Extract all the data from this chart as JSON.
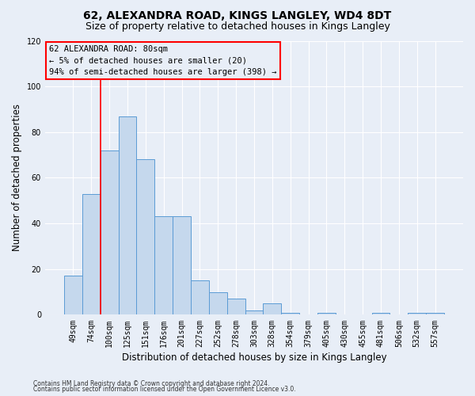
{
  "title": "62, ALEXANDRA ROAD, KINGS LANGLEY, WD4 8DT",
  "subtitle": "Size of property relative to detached houses in Kings Langley",
  "xlabel": "Distribution of detached houses by size in Kings Langley",
  "ylabel": "Number of detached properties",
  "categories": [
    "49sqm",
    "74sqm",
    "100sqm",
    "125sqm",
    "151sqm",
    "176sqm",
    "201sqm",
    "227sqm",
    "252sqm",
    "278sqm",
    "303sqm",
    "328sqm",
    "354sqm",
    "379sqm",
    "405sqm",
    "430sqm",
    "455sqm",
    "481sqm",
    "506sqm",
    "532sqm",
    "557sqm"
  ],
  "values": [
    17,
    53,
    72,
    87,
    68,
    43,
    43,
    15,
    10,
    7,
    2,
    5,
    1,
    0,
    1,
    0,
    0,
    1,
    0,
    1,
    1
  ],
  "bar_color": "#c5d8ed",
  "bar_edge_color": "#5b9bd5",
  "ylim": [
    0,
    120
  ],
  "yticks": [
    0,
    20,
    40,
    60,
    80,
    100,
    120
  ],
  "red_line_x": 1.5,
  "annotation_title": "62 ALEXANDRA ROAD: 80sqm",
  "annotation_line1": "← 5% of detached houses are smaller (20)",
  "annotation_line2": "94% of semi-detached houses are larger (398) →",
  "footer1": "Contains HM Land Registry data © Crown copyright and database right 2024.",
  "footer2": "Contains public sector information licensed under the Open Government Licence v3.0.",
  "background_color": "#e8eef7",
  "grid_color": "#ffffff",
  "title_fontsize": 10,
  "subtitle_fontsize": 9,
  "axis_label_fontsize": 8.5,
  "tick_fontsize": 7,
  "annotation_fontsize": 7.5,
  "footer_fontsize": 5.5
}
